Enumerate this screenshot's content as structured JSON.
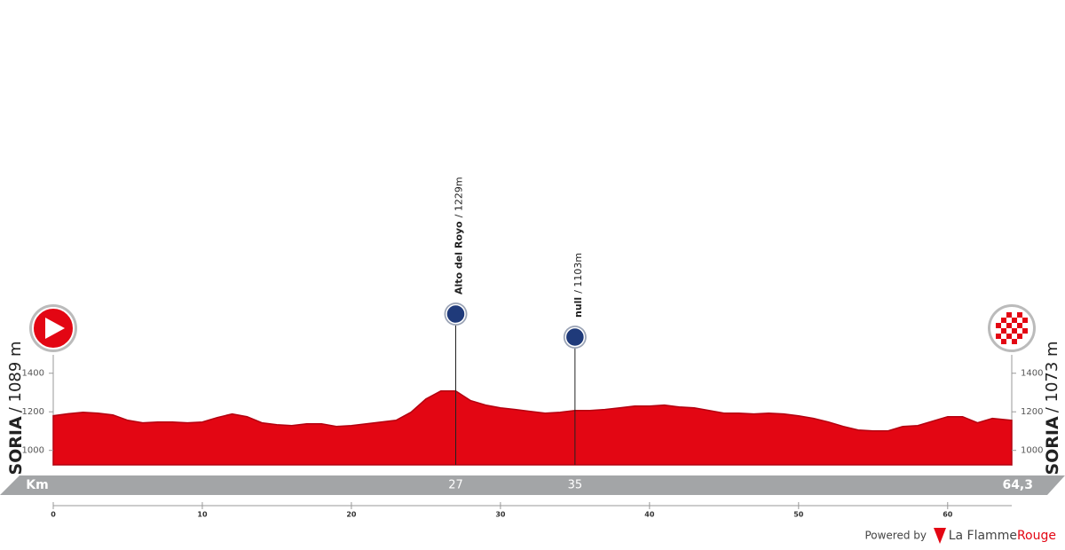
{
  "chart_data": {
    "type": "area",
    "color": "#e30613",
    "x": [
      0,
      1,
      2,
      3,
      4,
      5,
      6,
      7,
      8,
      9,
      10,
      11,
      12,
      13,
      14,
      15,
      16,
      17,
      18,
      19,
      20,
      21,
      22,
      23,
      24,
      25,
      26,
      27,
      28,
      29,
      30,
      31,
      32,
      33,
      34,
      35,
      36,
      37,
      38,
      39,
      40,
      41,
      42,
      43,
      44,
      45,
      46,
      47,
      48,
      49,
      50,
      51,
      52,
      53,
      54,
      55,
      56,
      57,
      58,
      59,
      60,
      61,
      62,
      63,
      64.3
    ],
    "values": [
      1180,
      1190,
      1198,
      1193,
      1184,
      1156,
      1143,
      1147,
      1147,
      1143,
      1147,
      1170,
      1189,
      1175,
      1143,
      1133,
      1129,
      1138,
      1138,
      1124,
      1129,
      1138,
      1147,
      1156,
      1198,
      1267,
      1308,
      1308,
      1258,
      1235,
      1221,
      1212,
      1202,
      1193,
      1198,
      1207,
      1207,
      1212,
      1221,
      1230,
      1230,
      1235,
      1225,
      1221,
      1207,
      1193,
      1193,
      1189,
      1193,
      1189,
      1179,
      1166,
      1147,
      1124,
      1106,
      1101,
      1101,
      1124,
      1129,
      1152,
      1175,
      1175,
      1143,
      1166,
      1156
    ],
    "xlim": [
      0,
      64.3
    ],
    "xticks": [
      0,
      10,
      20,
      30,
      40,
      50,
      60
    ],
    "ylim": [
      925,
      1500
    ],
    "yticks": [
      1000,
      1200,
      1400
    ],
    "start": {
      "name": "SORIA",
      "elevation": "/ 1089 m"
    },
    "finish": {
      "name": "SORIA",
      "elevation": "/ 1073 m"
    },
    "climbs": [
      {
        "name": "Alto del Royo",
        "elevation": "/ 1229m",
        "km": 27
      },
      {
        "name": "null",
        "elevation": "/ 1103m",
        "km": 35
      }
    ],
    "km_label": "Km",
    "total_distance": {
      "value": 64.3,
      "label": "64,3"
    }
  },
  "footer": {
    "powered_by": "Powered by",
    "brand_a": "La Flamme",
    "brand_b": "Rouge"
  }
}
